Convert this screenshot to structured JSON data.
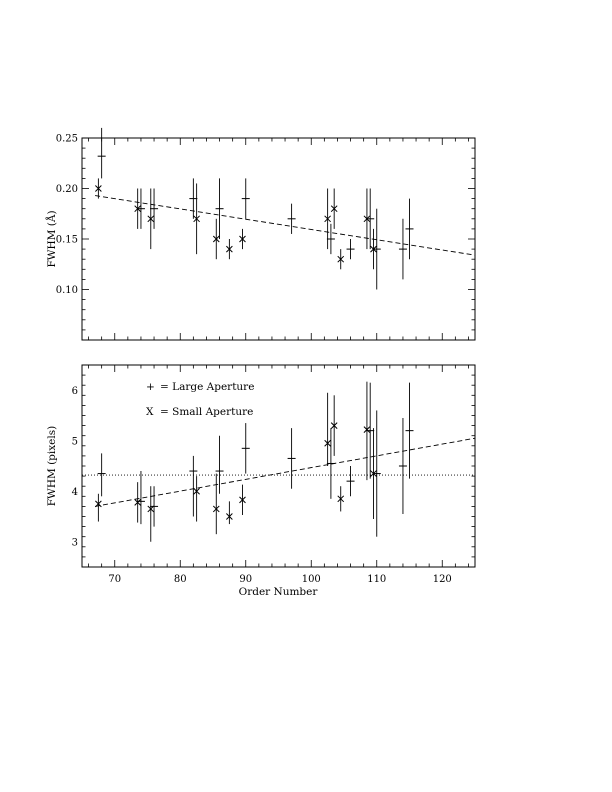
{
  "chart_data": [
    {
      "type": "scatter",
      "panel": "top",
      "ylabel": "FWHM (Å)",
      "xlabel": "",
      "xlim": [
        65,
        125
      ],
      "ylim": [
        0.05,
        0.25
      ],
      "x_ticks": [
        70,
        80,
        90,
        100,
        110,
        120
      ],
      "x_tick_labels_shown": false,
      "y_ticks": [
        0.1,
        0.15,
        0.2,
        0.25
      ],
      "y_tick_labels": [
        "0.10",
        "0.15",
        "0.20",
        "0.25"
      ],
      "grid": false,
      "series": [
        {
          "marker": "+",
          "points": [
            {
              "x": 68,
              "y": 0.232,
              "err_lo": 0.022,
              "err_hi": 0.028
            },
            {
              "x": 74,
              "y": 0.18,
              "err_lo": 0.02,
              "err_hi": 0.02
            },
            {
              "x": 76,
              "y": 0.18,
              "err_lo": 0.02,
              "err_hi": 0.02
            },
            {
              "x": 82,
              "y": 0.19,
              "err_lo": 0.02,
              "err_hi": 0.02
            },
            {
              "x": 86,
              "y": 0.18,
              "err_lo": 0.03,
              "err_hi": 0.03
            },
            {
              "x": 90,
              "y": 0.19,
              "err_lo": 0.02,
              "err_hi": 0.02
            },
            {
              "x": 97,
              "y": 0.17,
              "err_lo": 0.015,
              "err_hi": 0.015
            },
            {
              "x": 103,
              "y": 0.15,
              "err_lo": 0.015,
              "err_hi": 0.015
            },
            {
              "x": 106,
              "y": 0.14,
              "err_lo": 0.01,
              "err_hi": 0.01
            },
            {
              "x": 109,
              "y": 0.17,
              "err_lo": 0.03,
              "err_hi": 0.03
            },
            {
              "x": 110,
              "y": 0.14,
              "err_lo": 0.04,
              "err_hi": 0.04
            },
            {
              "x": 114,
              "y": 0.14,
              "err_lo": 0.03,
              "err_hi": 0.03
            },
            {
              "x": 115,
              "y": 0.16,
              "err_lo": 0.03,
              "err_hi": 0.03
            }
          ]
        },
        {
          "marker": "x",
          "points": [
            {
              "x": 67.5,
              "y": 0.2,
              "err_lo": 0.01,
              "err_hi": 0.01
            },
            {
              "x": 73.5,
              "y": 0.18,
              "err_lo": 0.02,
              "err_hi": 0.02
            },
            {
              "x": 75.5,
              "y": 0.17,
              "err_lo": 0.03,
              "err_hi": 0.03
            },
            {
              "x": 82.5,
              "y": 0.17,
              "err_lo": 0.035,
              "err_hi": 0.035
            },
            {
              "x": 85.5,
              "y": 0.15,
              "err_lo": 0.02,
              "err_hi": 0.02
            },
            {
              "x": 87.5,
              "y": 0.14,
              "err_lo": 0.01,
              "err_hi": 0.01
            },
            {
              "x": 89.5,
              "y": 0.15,
              "err_lo": 0.01,
              "err_hi": 0.01
            },
            {
              "x": 102.5,
              "y": 0.17,
              "err_lo": 0.03,
              "err_hi": 0.03
            },
            {
              "x": 103.5,
              "y": 0.18,
              "err_lo": 0.02,
              "err_hi": 0.02
            },
            {
              "x": 104.5,
              "y": 0.13,
              "err_lo": 0.01,
              "err_hi": 0.01
            },
            {
              "x": 108.5,
              "y": 0.17,
              "err_lo": 0.03,
              "err_hi": 0.03
            },
            {
              "x": 109.5,
              "y": 0.14,
              "err_lo": 0.02,
              "err_hi": 0.02
            }
          ]
        }
      ],
      "lines": [
        {
          "style": "dashed",
          "x": [
            67,
            125
          ],
          "y": [
            0.193,
            0.134
          ]
        }
      ]
    },
    {
      "type": "scatter",
      "panel": "bottom",
      "ylabel": "FWHM (pixels)",
      "xlabel": "Order Number",
      "xlim": [
        65,
        125
      ],
      "ylim": [
        2.5,
        6.5
      ],
      "x_ticks": [
        70,
        80,
        90,
        100,
        110,
        120
      ],
      "x_tick_labels": [
        "70",
        "80",
        "90",
        "100",
        "110",
        "120"
      ],
      "y_ticks": [
        3,
        4,
        5,
        6
      ],
      "y_tick_labels": [
        "3",
        "4",
        "5",
        "6"
      ],
      "grid": false,
      "legend": {
        "placement": "top-left",
        "entries": [
          {
            "symbol": "+",
            "label": "= Large Aperture"
          },
          {
            "symbol": "X",
            "label": "= Small Aperture"
          }
        ]
      },
      "series": [
        {
          "marker": "+",
          "points": [
            {
              "x": 68,
              "y": 4.35,
              "err_lo": 0.45,
              "err_hi": 0.4
            },
            {
              "x": 74,
              "y": 3.8,
              "err_lo": 0.45,
              "err_hi": 0.6
            },
            {
              "x": 76,
              "y": 3.7,
              "err_lo": 0.4,
              "err_hi": 0.4
            },
            {
              "x": 82,
              "y": 4.4,
              "err_lo": 0.9,
              "err_hi": 0.3
            },
            {
              "x": 86,
              "y": 4.4,
              "err_lo": 0.45,
              "err_hi": 0.7
            },
            {
              "x": 90,
              "y": 4.85,
              "err_lo": 0.5,
              "err_hi": 0.5
            },
            {
              "x": 97,
              "y": 4.65,
              "err_lo": 0.6,
              "err_hi": 0.6
            },
            {
              "x": 103,
              "y": 4.55,
              "err_lo": 0.7,
              "err_hi": 0.7
            },
            {
              "x": 106,
              "y": 4.2,
              "err_lo": 0.3,
              "err_hi": 0.3
            },
            {
              "x": 109,
              "y": 5.2,
              "err_lo": 0.95,
              "err_hi": 0.95
            },
            {
              "x": 110,
              "y": 4.35,
              "err_lo": 1.25,
              "err_hi": 1.25
            },
            {
              "x": 114,
              "y": 4.5,
              "err_lo": 0.95,
              "err_hi": 0.95
            },
            {
              "x": 115,
              "y": 5.2,
              "err_lo": 0.95,
              "err_hi": 0.95
            }
          ]
        },
        {
          "marker": "x",
          "points": [
            {
              "x": 67.5,
              "y": 3.75,
              "err_lo": 0.35,
              "err_hi": 0.2
            },
            {
              "x": 73.5,
              "y": 3.78,
              "err_lo": 0.4,
              "err_hi": 0.4
            },
            {
              "x": 75.5,
              "y": 3.65,
              "err_lo": 0.65,
              "err_hi": 0.45
            },
            {
              "x": 82.5,
              "y": 4.0,
              "err_lo": 0.6,
              "err_hi": 0.3
            },
            {
              "x": 85.5,
              "y": 3.65,
              "err_lo": 0.5,
              "err_hi": 0.7
            },
            {
              "x": 87.5,
              "y": 3.5,
              "err_lo": 0.15,
              "err_hi": 0.3
            },
            {
              "x": 89.5,
              "y": 3.83,
              "err_lo": 0.3,
              "err_hi": 0.3
            },
            {
              "x": 102.5,
              "y": 4.95,
              "err_lo": 0.45,
              "err_hi": 1.0
            },
            {
              "x": 103.5,
              "y": 5.3,
              "err_lo": 0.6,
              "err_hi": 0.6
            },
            {
              "x": 104.5,
              "y": 3.85,
              "err_lo": 0.25,
              "err_hi": 0.25
            },
            {
              "x": 108.5,
              "y": 5.22,
              "err_lo": 1.0,
              "err_hi": 0.95
            },
            {
              "x": 109.5,
              "y": 4.35,
              "err_lo": 0.9,
              "err_hi": 0.9
            }
          ]
        }
      ],
      "lines": [
        {
          "style": "dashed",
          "x": [
            67,
            125
          ],
          "y": [
            3.7,
            5.05
          ]
        },
        {
          "style": "dotted",
          "x": [
            65,
            125
          ],
          "y": [
            4.32,
            4.32
          ]
        }
      ]
    }
  ]
}
